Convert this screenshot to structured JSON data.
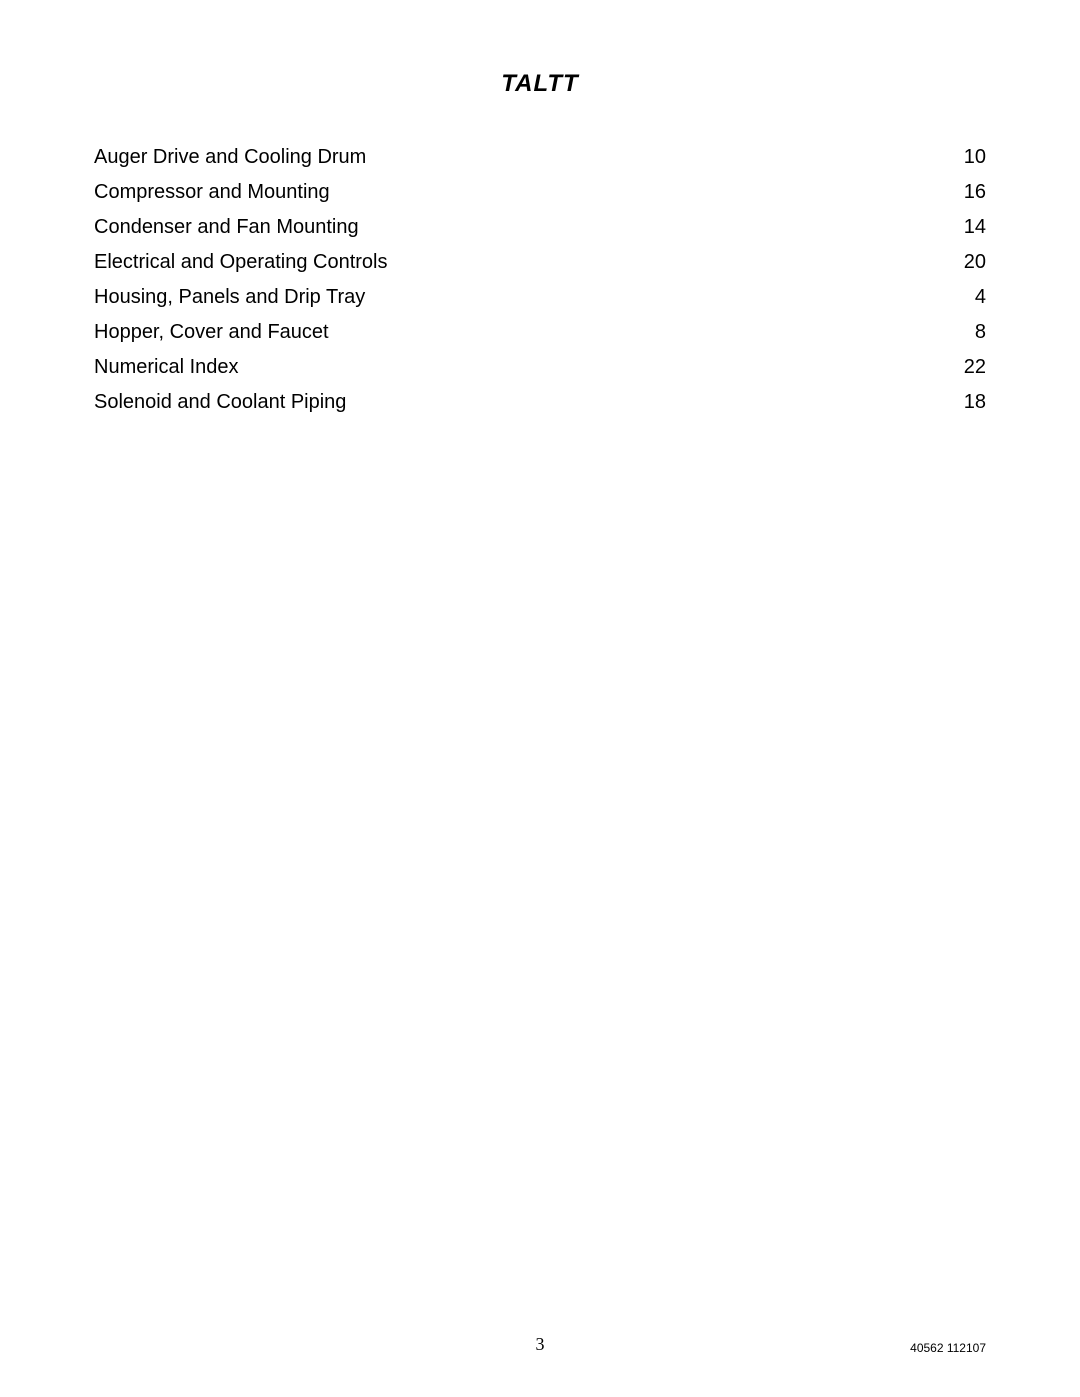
{
  "title": "TALTT",
  "toc": [
    {
      "label": "Auger Drive and Cooling Drum",
      "page": "10"
    },
    {
      "label": "Compressor and Mounting",
      "page": "16"
    },
    {
      "label": "Condenser and Fan Mounting",
      "page": "14"
    },
    {
      "label": "Electrical and Operating Controls",
      "page": "20"
    },
    {
      "label": "Housing, Panels and Drip Tray",
      "page": "4"
    },
    {
      "label": "Hopper, Cover and Faucet",
      "page": "8"
    },
    {
      "label": "Numerical Index",
      "page": "22"
    },
    {
      "label": "Solenoid and Coolant Piping",
      "page": "18"
    }
  ],
  "page_number": "3",
  "doc_code": "40562 112107",
  "colors": {
    "text": "#000000",
    "background": "#ffffff"
  },
  "typography": {
    "title_fontsize": 24,
    "toc_fontsize": 20,
    "page_number_fontsize": 18,
    "doc_code_fontsize": 12
  }
}
